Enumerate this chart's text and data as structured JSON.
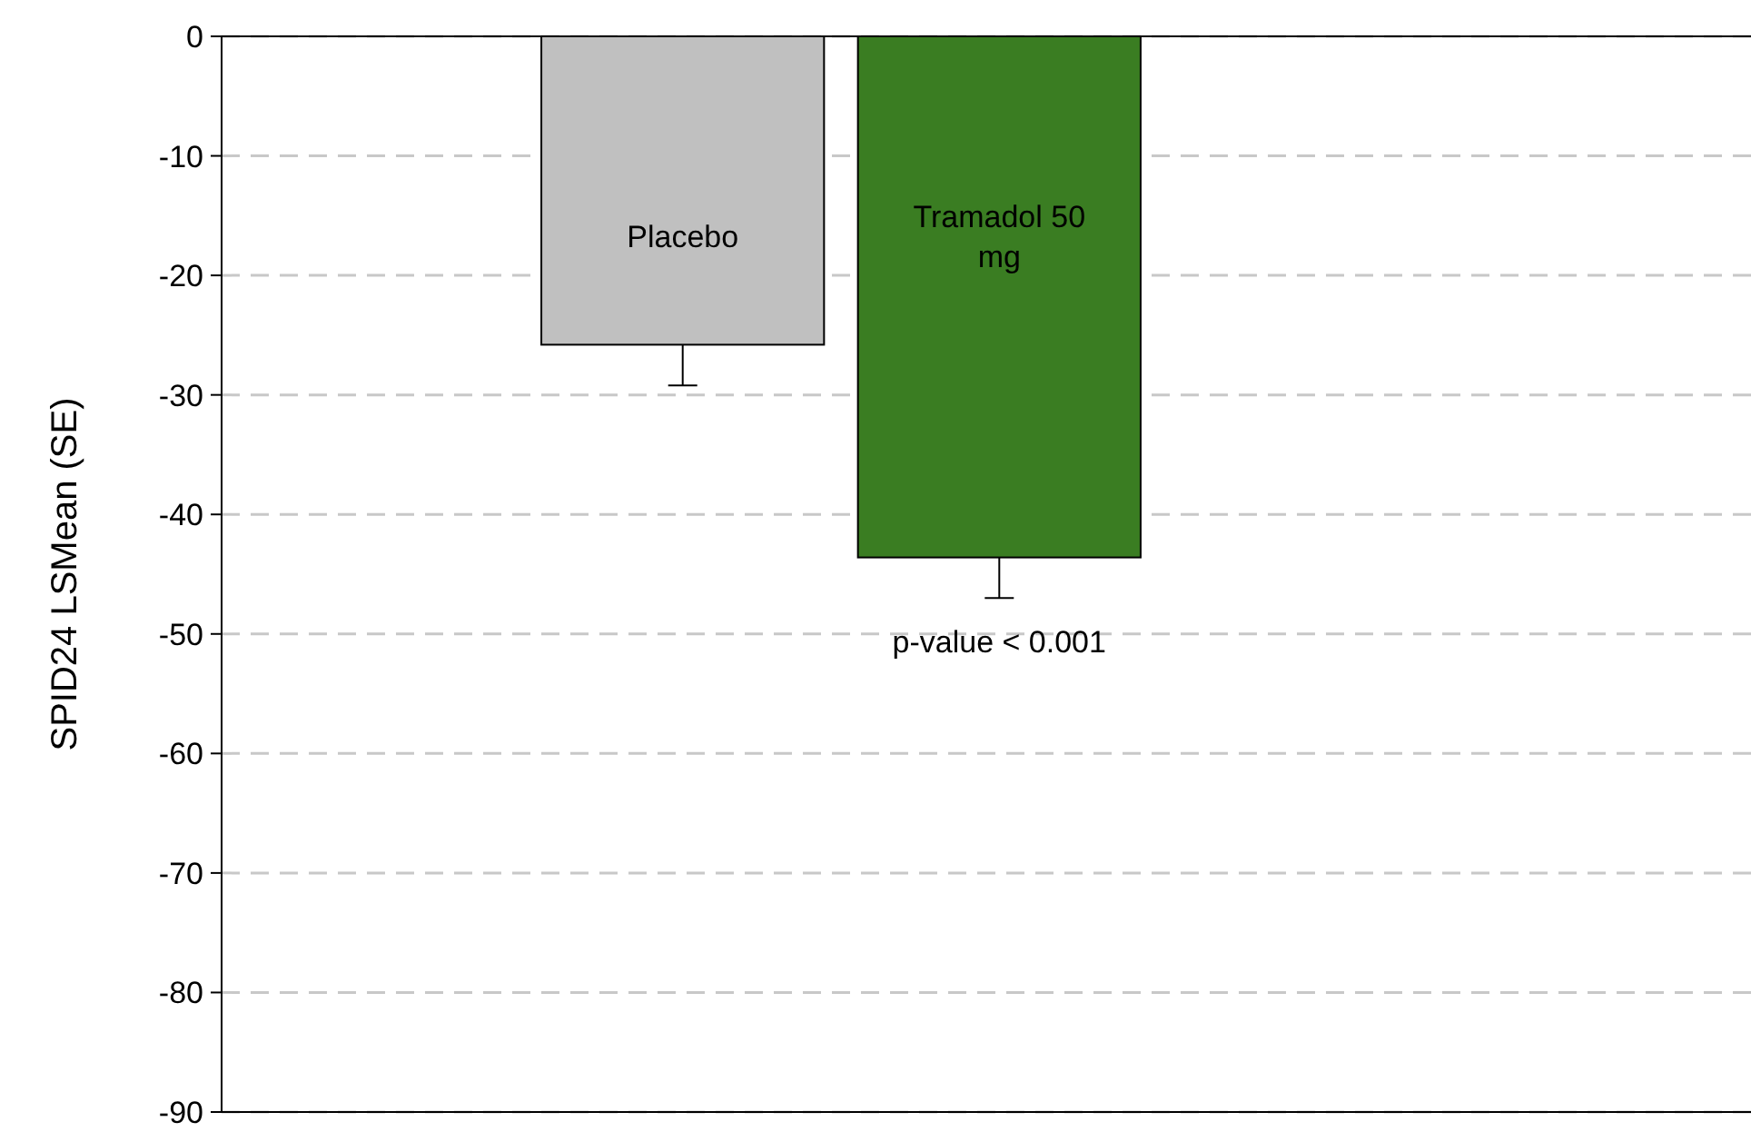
{
  "chart_data": {
    "type": "bar",
    "ylabel": "SPID24 LSMean (SE)",
    "categories": [
      "Placebo",
      "Tramadol 50 mg"
    ],
    "values": [
      -25.8,
      -43.6
    ],
    "colors": [
      "#c0c0c0",
      "#3a7d22"
    ],
    "errors": [
      [
        -29.2,
        -25.8
      ],
      [
        -47.0,
        -43.6
      ]
    ],
    "ylim": [
      -90,
      0
    ],
    "yticks": [
      -90,
      -80,
      -70,
      -60,
      -50,
      -40,
      -30,
      -20,
      -10,
      0
    ],
    "grid": "y",
    "annotations": [
      "p-value < 0.001"
    ]
  }
}
